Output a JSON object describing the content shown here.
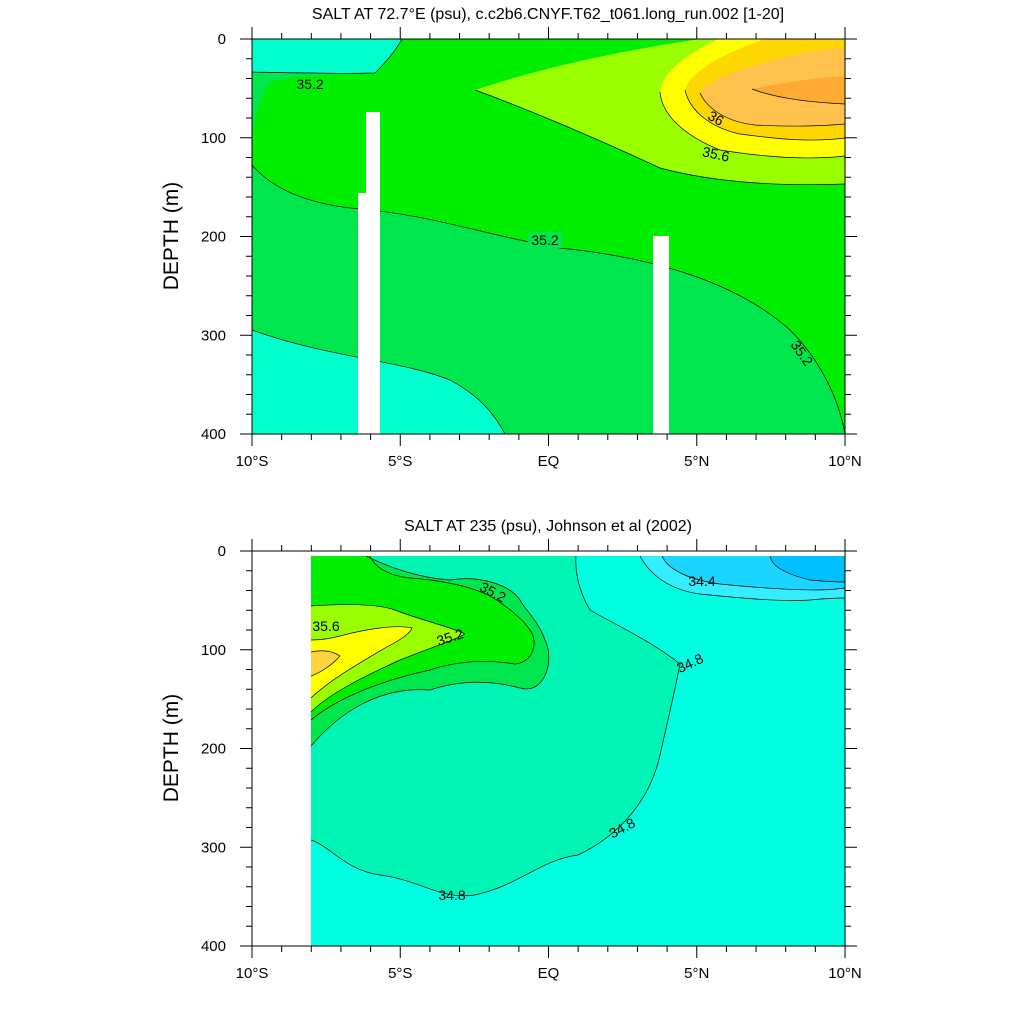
{
  "chart_data": [
    {
      "type": "contour",
      "title": "SALT AT  72.7°E (psu), c.c2b6.CNYF.T62_t061.long_run.002 [1-20]",
      "xlabel": "",
      "ylabel": "DEPTH (m)",
      "xlim": [
        -10,
        10
      ],
      "ylim": [
        0,
        400
      ],
      "y_reversed": true,
      "x_ticks": [
        {
          "value": -10,
          "label": "10°S"
        },
        {
          "value": -5,
          "label": "5°S"
        },
        {
          "value": 0,
          "label": "EQ"
        },
        {
          "value": 5,
          "label": "5°N"
        },
        {
          "value": 10,
          "label": "10°N"
        }
      ],
      "y_ticks": [
        {
          "value": 0,
          "label": "0"
        },
        {
          "value": 100,
          "label": "100"
        },
        {
          "value": 200,
          "label": "200"
        },
        {
          "value": 300,
          "label": "300"
        },
        {
          "value": 400,
          "label": "400"
        }
      ],
      "contour_interval": 0.2,
      "fill_levels": [
        {
          "min": 34.8,
          "max": 35.0,
          "color": "#00ffcc"
        },
        {
          "min": 35.0,
          "max": 35.2,
          "color": "#00e64d"
        },
        {
          "min": 35.2,
          "max": 35.4,
          "color": "#00ee00"
        },
        {
          "min": 35.4,
          "max": 35.6,
          "color": "#99ff00"
        },
        {
          "min": 35.6,
          "max": 35.8,
          "color": "#ffff00"
        },
        {
          "min": 35.8,
          "max": 36.0,
          "color": "#ffd700"
        },
        {
          "min": 36.0,
          "max": 36.2,
          "color": "#ffc24d"
        },
        {
          "min": 36.2,
          "max": 36.4,
          "color": "#ffaa33"
        }
      ],
      "contour_labels": [
        "35.2",
        "36",
        "35.6",
        "35.2",
        "35.2"
      ],
      "missing_data_columns_lon": [
        -6.1,
        -5.8,
        4.0
      ]
    },
    {
      "type": "contour",
      "title": "SALT AT 235 (psu), Johnson et al (2002)",
      "xlabel": "",
      "ylabel": "DEPTH (m)",
      "xlim": [
        -10,
        10
      ],
      "ylim": [
        0,
        400
      ],
      "y_reversed": true,
      "x_ticks": [
        {
          "value": -10,
          "label": "10°S"
        },
        {
          "value": -5,
          "label": "5°S"
        },
        {
          "value": 0,
          "label": "EQ"
        },
        {
          "value": 5,
          "label": "5°N"
        },
        {
          "value": 10,
          "label": "10°N"
        }
      ],
      "y_ticks": [
        {
          "value": 0,
          "label": "0"
        },
        {
          "value": 100,
          "label": "100"
        },
        {
          "value": 200,
          "label": "200"
        },
        {
          "value": 300,
          "label": "300"
        },
        {
          "value": 400,
          "label": "400"
        }
      ],
      "contour_interval": 0.2,
      "data_lon_range": [
        -8,
        10
      ],
      "data_depth_range": [
        5,
        400
      ],
      "fill_levels": [
        {
          "min": 34.0,
          "max": 34.2,
          "color": "#00bfff"
        },
        {
          "min": 34.2,
          "max": 34.4,
          "color": "#1ad5ff"
        },
        {
          "min": 34.4,
          "max": 34.6,
          "color": "#33eeff"
        },
        {
          "min": 34.6,
          "max": 34.8,
          "color": "#00ffe0"
        },
        {
          "min": 34.8,
          "max": 35.0,
          "color": "#00f5b5"
        },
        {
          "min": 35.0,
          "max": 35.2,
          "color": "#00e64d"
        },
        {
          "min": 35.2,
          "max": 35.4,
          "color": "#00ee00"
        },
        {
          "min": 35.4,
          "max": 35.6,
          "color": "#99ff00"
        },
        {
          "min": 35.6,
          "max": 35.8,
          "color": "#ffff00"
        },
        {
          "min": 35.8,
          "max": 36.0,
          "color": "#ffd23f"
        }
      ],
      "contour_labels": [
        "35.2",
        "35.6",
        "35.2",
        "34.4",
        "34.8",
        "34.8",
        "34.8"
      ]
    }
  ]
}
